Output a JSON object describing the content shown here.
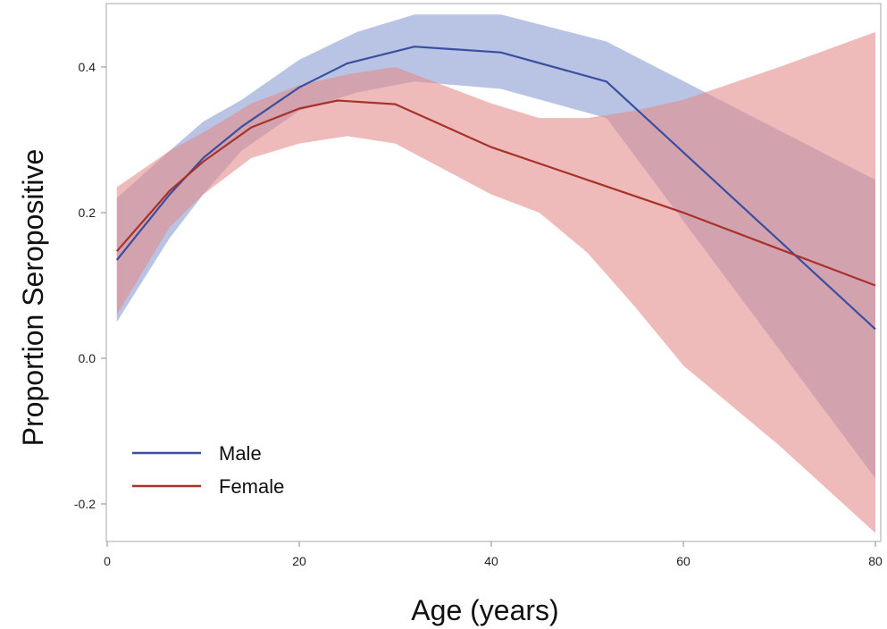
{
  "chart_data": {
    "type": "line",
    "xlabel": "Age (years)",
    "ylabel": "Proportion Seropositive",
    "xlim": [
      0,
      80
    ],
    "ylim": [
      -0.24,
      0.48
    ],
    "xticks": [
      0,
      20,
      40,
      60,
      80
    ],
    "yticks": [
      -0.2,
      0.0,
      0.2,
      0.4
    ],
    "xtick_labels": [
      "0",
      "20",
      "40",
      "60",
      "80"
    ],
    "ytick_labels": [
      "-0.2",
      "0.0",
      "0.2",
      "0.4"
    ],
    "grid": false,
    "legend": {
      "position": "bottom-left"
    },
    "series": [
      {
        "name": "Male",
        "color": "#3b4fa0",
        "band_color": "#8a9bd0",
        "x": [
          1,
          6.5,
          10,
          14,
          20,
          25,
          32,
          41,
          52,
          80
        ],
        "y": [
          0.135,
          0.225,
          0.275,
          0.318,
          0.372,
          0.405,
          0.428,
          0.42,
          0.38,
          0.04
        ],
        "ci_x": [
          1,
          6.5,
          10,
          14,
          20,
          26,
          32,
          41,
          52,
          80
        ],
        "ci_lower": [
          0.05,
          0.165,
          0.225,
          0.285,
          0.34,
          0.365,
          0.38,
          0.37,
          0.33,
          -0.165
        ],
        "ci_upper": [
          0.22,
          0.285,
          0.325,
          0.355,
          0.41,
          0.448,
          0.472,
          0.472,
          0.435,
          0.245
        ]
      },
      {
        "name": "Female",
        "color": "#a8322a",
        "band_color": "#e58c8c",
        "x": [
          1,
          6.5,
          10,
          15,
          20,
          24,
          30,
          40,
          50,
          60,
          70,
          80
        ],
        "y": [
          0.147,
          0.23,
          0.27,
          0.317,
          0.343,
          0.354,
          0.349,
          0.29,
          0.245,
          0.2,
          0.15,
          0.1
        ],
        "ci_x": [
          1,
          6.5,
          10,
          15,
          20,
          25,
          30,
          40,
          45,
          50,
          55,
          60,
          70,
          80
        ],
        "ci_lower": [
          0.06,
          0.18,
          0.225,
          0.275,
          0.295,
          0.305,
          0.295,
          0.225,
          0.2,
          0.145,
          0.07,
          -0.01,
          -0.12,
          -0.24
        ],
        "ci_upper": [
          0.235,
          0.285,
          0.31,
          0.35,
          0.375,
          0.39,
          0.4,
          0.35,
          0.33,
          0.33,
          0.34,
          0.355,
          0.4,
          0.448
        ]
      }
    ]
  }
}
